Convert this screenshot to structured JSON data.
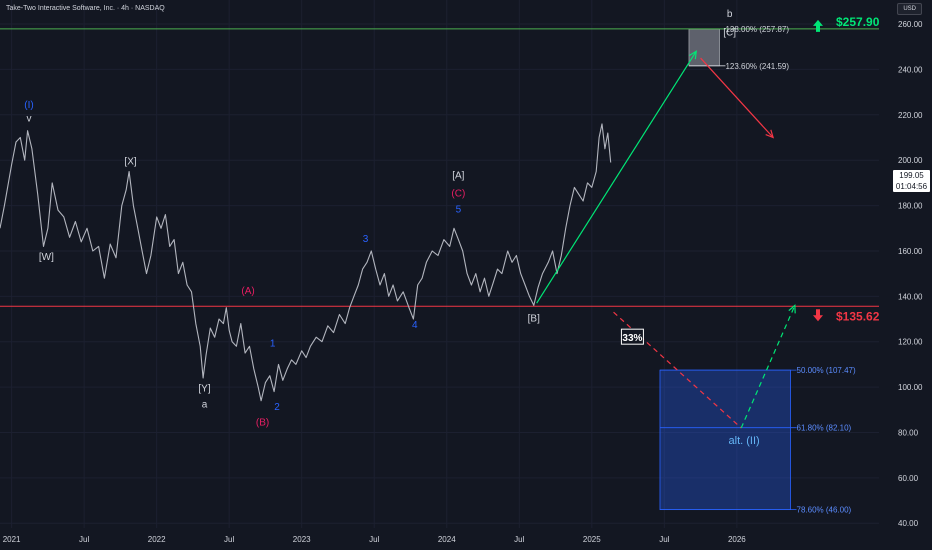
{
  "header": {
    "symbol_line": "Take-Two Interactive Software, Inc. · 4h · NASDAQ",
    "currency": "USD"
  },
  "price_box": {
    "price": "199.05",
    "countdown": "01:04:56"
  },
  "colors": {
    "background": "#131722",
    "price_line": "#b2b5be",
    "up": "#00e676",
    "down": "#f23645",
    "target_line": "#4caf50",
    "support_line": "#f23645",
    "zone_blue": "#2962ff",
    "zone_grey": "#787b86",
    "wave_blue": "#2962ff",
    "wave_red": "#e91e63",
    "wave_white": "#d1d4dc",
    "wave_light_blue": "#64b5f6"
  },
  "chart_data": {
    "type": "line",
    "title": "Take-Two Interactive Software, Inc. · 4h · NASDAQ",
    "x_ticks": [
      "2021",
      "Jul",
      "2022",
      "Jul",
      "2023",
      "Jul",
      "2024",
      "Jul",
      "2025",
      "Jul",
      "2026"
    ],
    "x_tick_values": [
      2021.0,
      2021.5,
      2022.0,
      2022.5,
      2023.0,
      2023.5,
      2024.0,
      2024.5,
      2025.0,
      2025.5,
      2026.0
    ],
    "y_ticks": [
      40,
      60,
      80,
      100,
      120,
      140,
      160,
      180,
      200,
      220,
      240,
      260
    ],
    "xlim": [
      2020.92,
      2026.98
    ],
    "ylim": [
      37.9,
      270.6
    ],
    "series": [
      {
        "values": [
          [
            2020.92,
            170
          ],
          [
            2020.95,
            180
          ],
          [
            2021.0,
            198
          ],
          [
            2021.03,
            208
          ],
          [
            2021.06,
            210
          ],
          [
            2021.09,
            200
          ],
          [
            2021.11,
            213
          ],
          [
            2021.14,
            205
          ],
          [
            2021.18,
            185
          ],
          [
            2021.22,
            162
          ],
          [
            2021.25,
            170
          ],
          [
            2021.28,
            190
          ],
          [
            2021.32,
            178
          ],
          [
            2021.36,
            175
          ],
          [
            2021.4,
            166
          ],
          [
            2021.44,
            173
          ],
          [
            2021.48,
            164
          ],
          [
            2021.52,
            170
          ],
          [
            2021.56,
            160
          ],
          [
            2021.6,
            162
          ],
          [
            2021.64,
            148
          ],
          [
            2021.68,
            163
          ],
          [
            2021.72,
            157
          ],
          [
            2021.76,
            180
          ],
          [
            2021.79,
            187
          ],
          [
            2021.81,
            195
          ],
          [
            2021.84,
            180
          ],
          [
            2021.87,
            170
          ],
          [
            2021.9,
            160
          ],
          [
            2021.93,
            150
          ],
          [
            2021.96,
            158
          ],
          [
            2022.0,
            175
          ],
          [
            2022.03,
            170
          ],
          [
            2022.06,
            176
          ],
          [
            2022.09,
            162
          ],
          [
            2022.12,
            165
          ],
          [
            2022.15,
            150
          ],
          [
            2022.18,
            155
          ],
          [
            2022.21,
            145
          ],
          [
            2022.24,
            142
          ],
          [
            2022.27,
            128
          ],
          [
            2022.3,
            118
          ],
          [
            2022.32,
            104
          ],
          [
            2022.34,
            114
          ],
          [
            2022.37,
            126
          ],
          [
            2022.4,
            122
          ],
          [
            2022.43,
            130
          ],
          [
            2022.46,
            128
          ],
          [
            2022.48,
            135
          ],
          [
            2022.5,
            125
          ],
          [
            2022.52,
            120
          ],
          [
            2022.55,
            118
          ],
          [
            2022.58,
            128
          ],
          [
            2022.61,
            115
          ],
          [
            2022.64,
            118
          ],
          [
            2022.67,
            108
          ],
          [
            2022.7,
            100
          ],
          [
            2022.72,
            94
          ],
          [
            2022.75,
            102
          ],
          [
            2022.78,
            105
          ],
          [
            2022.81,
            98
          ],
          [
            2022.84,
            110
          ],
          [
            2022.87,
            103
          ],
          [
            2022.9,
            108
          ],
          [
            2022.93,
            112
          ],
          [
            2022.96,
            110
          ],
          [
            2023.0,
            116
          ],
          [
            2023.03,
            113
          ],
          [
            2023.06,
            118
          ],
          [
            2023.1,
            122
          ],
          [
            2023.14,
            120
          ],
          [
            2023.18,
            127
          ],
          [
            2023.22,
            124
          ],
          [
            2023.26,
            132
          ],
          [
            2023.3,
            128
          ],
          [
            2023.33,
            135
          ],
          [
            2023.36,
            140
          ],
          [
            2023.39,
            145
          ],
          [
            2023.42,
            152
          ],
          [
            2023.45,
            155
          ],
          [
            2023.48,
            160
          ],
          [
            2023.51,
            152
          ],
          [
            2023.54,
            145
          ],
          [
            2023.57,
            150
          ],
          [
            2023.6,
            140
          ],
          [
            2023.63,
            145
          ],
          [
            2023.66,
            138
          ],
          [
            2023.7,
            142
          ],
          [
            2023.74,
            135
          ],
          [
            2023.77,
            130
          ],
          [
            2023.8,
            145
          ],
          [
            2023.83,
            148
          ],
          [
            2023.86,
            155
          ],
          [
            2023.9,
            160
          ],
          [
            2023.94,
            158
          ],
          [
            2023.98,
            165
          ],
          [
            2024.02,
            162
          ],
          [
            2024.05,
            170
          ],
          [
            2024.08,
            165
          ],
          [
            2024.11,
            160
          ],
          [
            2024.14,
            150
          ],
          [
            2024.17,
            145
          ],
          [
            2024.2,
            150
          ],
          [
            2024.23,
            142
          ],
          [
            2024.26,
            148
          ],
          [
            2024.29,
            140
          ],
          [
            2024.32,
            146
          ],
          [
            2024.35,
            152
          ],
          [
            2024.38,
            150
          ],
          [
            2024.42,
            160
          ],
          [
            2024.45,
            155
          ],
          [
            2024.48,
            158
          ],
          [
            2024.51,
            150
          ],
          [
            2024.54,
            145
          ],
          [
            2024.57,
            140
          ],
          [
            2024.6,
            136
          ],
          [
            2024.63,
            144
          ],
          [
            2024.66,
            150
          ],
          [
            2024.7,
            155
          ],
          [
            2024.73,
            160
          ],
          [
            2024.76,
            150
          ],
          [
            2024.79,
            158
          ],
          [
            2024.82,
            170
          ],
          [
            2024.85,
            180
          ],
          [
            2024.88,
            188
          ],
          [
            2024.91,
            185
          ],
          [
            2024.94,
            182
          ],
          [
            2024.97,
            190
          ],
          [
            2025.0,
            188
          ],
          [
            2025.03,
            195
          ],
          [
            2025.05,
            210
          ],
          [
            2025.07,
            216
          ],
          [
            2025.09,
            205
          ],
          [
            2025.11,
            212
          ],
          [
            2025.13,
            199
          ]
        ]
      }
    ],
    "levels": [
      {
        "price": 257.9,
        "label": "$257.90"
      },
      {
        "price": 135.62,
        "label": "$135.62"
      }
    ],
    "fib_labels": [
      {
        "label": "138.00% (257.87)",
        "price": 257.87
      },
      {
        "label": "123.60% (241.59)",
        "price": 241.59
      },
      {
        "label": "50.00% (107.47)",
        "price": 107.47
      },
      {
        "label": "61.80% (82.10)",
        "price": 82.1
      },
      {
        "label": "78.60% (46.00)",
        "price": 46.0
      }
    ],
    "zones": [
      {
        "x": [
          2025.47,
          2026.37
        ],
        "y": [
          46.0,
          107.47
        ]
      },
      {
        "x": [
          2025.67,
          2025.88
        ],
        "y": [
          241.59,
          257.87
        ]
      }
    ],
    "paths": [
      {
        "points": [
          [
            2024.62,
            137
          ],
          [
            2025.72,
            248
          ]
        ],
        "color": "up",
        "style": "solid"
      },
      {
        "points": [
          [
            2025.75,
            245
          ],
          [
            2026.25,
            210
          ]
        ],
        "color": "down",
        "style": "solid"
      },
      {
        "points": [
          [
            2025.15,
            133
          ],
          [
            2026.03,
            82
          ]
        ],
        "color": "down",
        "style": "dashed"
      },
      {
        "points": [
          [
            2026.03,
            82
          ],
          [
            2026.4,
            136
          ]
        ],
        "color": "up",
        "style": "dashed"
      }
    ],
    "wave_labels": [
      {
        "text": "(I)",
        "x": 2021.12,
        "y": 223,
        "color": "wave_blue"
      },
      {
        "text": "v",
        "x": 2021.12,
        "y": 217,
        "color": "wave_white"
      },
      {
        "text": "[W]",
        "x": 2021.24,
        "y": 156,
        "color": "wave_white"
      },
      {
        "text": "[X]",
        "x": 2021.82,
        "y": 198,
        "color": "wave_white"
      },
      {
        "text": "(A)",
        "x": 2022.63,
        "y": 141,
        "color": "wave_red"
      },
      {
        "text": "[Y]",
        "x": 2022.33,
        "y": 98,
        "color": "wave_white"
      },
      {
        "text": "a",
        "x": 2022.33,
        "y": 91,
        "color": "wave_white"
      },
      {
        "text": "1",
        "x": 2022.8,
        "y": 118,
        "color": "wave_blue"
      },
      {
        "text": "2",
        "x": 2022.83,
        "y": 90,
        "color": "wave_blue"
      },
      {
        "text": "(B)",
        "x": 2022.73,
        "y": 83,
        "color": "wave_red"
      },
      {
        "text": "3",
        "x": 2023.44,
        "y": 164,
        "color": "wave_blue"
      },
      {
        "text": "4",
        "x": 2023.78,
        "y": 126,
        "color": "wave_blue"
      },
      {
        "text": "[A]",
        "x": 2024.08,
        "y": 192,
        "color": "wave_white"
      },
      {
        "text": "(C)",
        "x": 2024.08,
        "y": 184,
        "color": "wave_red"
      },
      {
        "text": "5",
        "x": 2024.08,
        "y": 177,
        "color": "wave_blue"
      },
      {
        "text": "[B]",
        "x": 2024.6,
        "y": 129,
        "color": "wave_white"
      },
      {
        "text": "b",
        "x": 2025.95,
        "y": 263,
        "color": "wave_white"
      },
      {
        "text": "[C]",
        "x": 2025.95,
        "y": 255,
        "color": "wave_white"
      },
      {
        "text": "alt. (II)",
        "x": 2026.05,
        "y": 75,
        "color": "wave_light_blue"
      }
    ],
    "probability": {
      "text": "33%",
      "x": 2025.28,
      "y": 122
    }
  }
}
